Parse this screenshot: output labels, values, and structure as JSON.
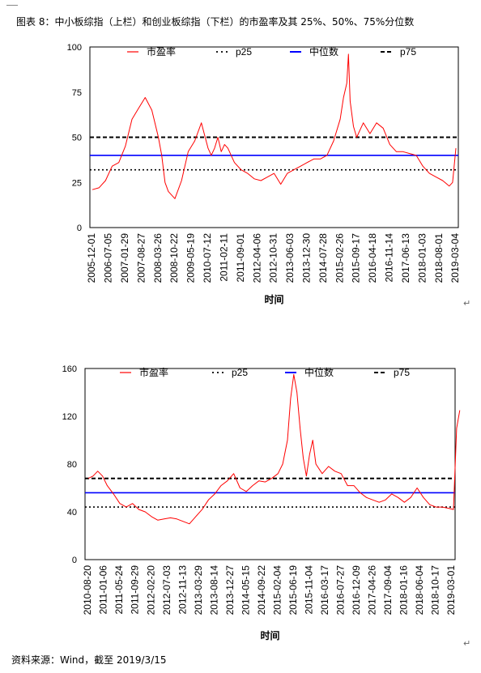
{
  "caption": "图表 8：中小板综指（上栏）和创业板综指（下栏）的市盈率及其 25%、50%、75%分位数",
  "source": "资料来源：Wind，截至 2019/3/15",
  "paragraph_mark": "↵",
  "chart_data": [
    {
      "type": "line",
      "xlabel": "时间",
      "ylim": [
        0,
        100
      ],
      "yticks": [
        0,
        25,
        50,
        75,
        100
      ],
      "tick_labels": [
        "2005-12-01",
        "2006-07-05",
        "2007-01-29",
        "2007-08-27",
        "2008-03-26",
        "2008-10-22",
        "2009-05-19",
        "2010-07-12",
        "2011-02-11",
        "2011-09-01",
        "2012-04-06",
        "2012-10-31",
        "2013-06-03",
        "2013-12-30",
        "2014-07-28",
        "2015-02-26",
        "2015-09-17",
        "2016-04-18",
        "2016-11-14",
        "2017-06-13",
        "2018-01-03",
        "2018-08-01",
        "2019-03-04"
      ],
      "legend": [
        "市盈率",
        "p25",
        "中位数",
        "p75"
      ],
      "reference_lines": {
        "p25": 32,
        "median": 40,
        "p75": 50
      },
      "colors": {
        "series": "#ff0000",
        "median": "#0000ff",
        "quantile": "#000000"
      },
      "series": [
        {
          "name": "市盈率",
          "x_index": [
            0,
            0.4,
            0.8,
            1.2,
            1.6,
            2,
            2.4,
            2.8,
            3.2,
            3.6,
            4,
            4.2,
            4.4,
            4.6,
            5,
            5.4,
            5.8,
            6.2,
            6.6,
            7,
            7.2,
            7.4,
            7.6,
            7.8,
            8,
            8.2,
            8.6,
            9,
            9.4,
            9.8,
            10.2,
            10.6,
            11,
            11.4,
            11.8,
            12.2,
            12.6,
            13,
            13.4,
            13.8,
            14.2,
            14.6,
            15,
            15.2,
            15.4,
            15.5,
            15.6,
            15.8,
            16,
            16.2,
            16.4,
            16.8,
            17.2,
            17.6,
            18,
            18.4,
            18.8,
            19.2,
            19.6,
            20,
            20.4,
            20.8,
            21.2,
            21.6,
            21.8,
            22
          ],
          "values": [
            21,
            22,
            26,
            34,
            36,
            45,
            60,
            66,
            72,
            65,
            50,
            40,
            25,
            20,
            16,
            26,
            42,
            48,
            58,
            44,
            40,
            44,
            50,
            42,
            46,
            44,
            36,
            32,
            30,
            27,
            26,
            28,
            30,
            24,
            30,
            32,
            34,
            36,
            38,
            38,
            40,
            48,
            60,
            72,
            80,
            96,
            70,
            56,
            50,
            54,
            58,
            52,
            58,
            55,
            46,
            42,
            42,
            41,
            40,
            34,
            30,
            28,
            26,
            23,
            25,
            44
          ]
        }
      ]
    },
    {
      "type": "line",
      "xlabel": "时间",
      "ylim": [
        0,
        160
      ],
      "yticks": [
        0,
        40,
        80,
        120,
        160
      ],
      "tick_labels": [
        "2010-08-20",
        "2011-01-06",
        "2011-05-24",
        "2011-09-29",
        "2012-02-20",
        "2012-07-03",
        "2012-11-13",
        "2013-03-29",
        "2013-08-14",
        "2013-12-27",
        "2014-05-15",
        "2014-09-22",
        "2015-02-04",
        "2015-06-19",
        "2015-11-04",
        "2016-03-17",
        "2016-07-27",
        "2016-12-09",
        "2017-04-26",
        "2017-09-04",
        "2018-01-16",
        "2018-06-04",
        "2018-10-17",
        "2019-03-01"
      ],
      "legend": [
        "市盈率",
        "p25",
        "中位数",
        "p75"
      ],
      "reference_lines": {
        "p25": 44,
        "median": 56,
        "p75": 68
      },
      "colors": {
        "series": "#ff0000",
        "median": "#0000ff",
        "quantile": "#000000"
      },
      "series": [
        {
          "name": "市盈率",
          "x_index": [
            0,
            0.3,
            0.6,
            0.9,
            1.2,
            1.6,
            2,
            2.4,
            2.8,
            3.2,
            3.6,
            4,
            4.4,
            4.8,
            5.2,
            5.6,
            6,
            6.4,
            6.8,
            7.2,
            7.6,
            8,
            8.4,
            8.8,
            9.2,
            9.6,
            10,
            10.4,
            10.8,
            11.2,
            11.6,
            12,
            12.3,
            12.6,
            12.8,
            13,
            13.2,
            13.4,
            13.6,
            13.8,
            14,
            14.2,
            14.4,
            14.8,
            15.2,
            15.6,
            16,
            16.4,
            16.8,
            17.2,
            17.6,
            18,
            18.4,
            18.8,
            19.2,
            19.6,
            20,
            20.4,
            20.8,
            21.2,
            21.6,
            22,
            22.4,
            22.8,
            23.1,
            23.3,
            23.5
          ],
          "values": [
            68,
            70,
            74,
            70,
            62,
            55,
            47,
            44,
            47,
            42,
            40,
            36,
            33,
            34,
            35,
            34,
            32,
            30,
            36,
            42,
            50,
            55,
            62,
            66,
            72,
            60,
            57,
            62,
            66,
            65,
            68,
            72,
            80,
            100,
            135,
            155,
            140,
            110,
            85,
            70,
            88,
            100,
            80,
            72,
            78,
            74,
            72,
            62,
            62,
            56,
            52,
            50,
            48,
            50,
            55,
            52,
            48,
            52,
            60,
            52,
            46,
            44,
            44,
            43,
            42,
            110,
            125
          ]
        }
      ]
    }
  ]
}
